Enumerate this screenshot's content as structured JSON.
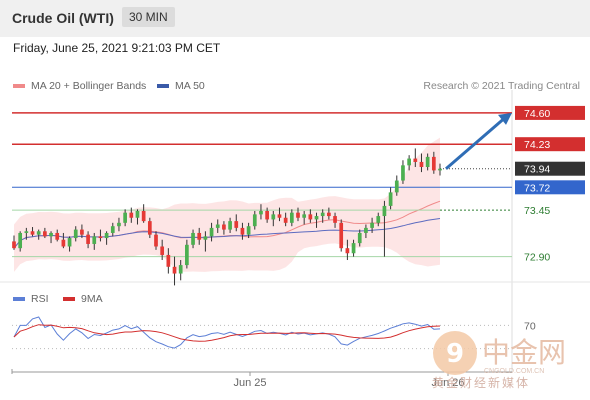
{
  "header": {
    "title": "Crude Oil (WTI)",
    "timeframe": "30 MIN"
  },
  "datetime": "Friday, June 25, 2021 9:21:03 PM CET",
  "legend": {
    "ma20_label": "MA 20 + Bollinger Bands",
    "ma50_label": "MA 50",
    "rsi_label": "RSI",
    "ma9_label": "9MA",
    "copyright": "Research © 2021 Trading Central"
  },
  "colors": {
    "resistance": "#d32f2f",
    "support": "#a5d6a7",
    "pivot": "#3366cc",
    "current": "#333333",
    "arrow": "#2f6db5",
    "bb_fill": "#fde0e0",
    "ma20": "#f08a8a",
    "ma50": "#5c6bc0",
    "rsi": "#5c7fd6",
    "ma9": "#d32f2f"
  },
  "watermark": {
    "name": "中金网",
    "domain": "CNGOLD.COM.CN",
    "tagline": "黄金财经新媒体"
  },
  "chart_data": [
    {
      "type": "candlestick",
      "x_axis": {
        "labels": [
          "Jun 25",
          "Jun 26"
        ]
      },
      "y_range": [
        72.6,
        74.8
      ],
      "levels": [
        {
          "label": "74.60",
          "value": 74.6,
          "kind": "target"
        },
        {
          "label": "74.23",
          "value": 74.23,
          "kind": "resistance"
        },
        {
          "label": "73.94",
          "value": 73.94,
          "kind": "current"
        },
        {
          "label": "73.72",
          "value": 73.72,
          "kind": "pivot"
        },
        {
          "label": "73.45",
          "value": 73.45,
          "kind": "support"
        },
        {
          "label": "72.90",
          "value": 72.9,
          "kind": "support"
        }
      ],
      "candles": [
        [
          73.08,
          73.15,
          72.98,
          73.0
        ],
        [
          73.0,
          73.2,
          72.96,
          73.18
        ],
        [
          73.18,
          73.24,
          73.1,
          73.2
        ],
        [
          73.2,
          73.25,
          73.14,
          73.16
        ],
        [
          73.16,
          73.22,
          73.1,
          73.2
        ],
        [
          73.2,
          73.24,
          73.12,
          73.14
        ],
        [
          73.14,
          73.2,
          73.06,
          73.18
        ],
        [
          73.18,
          73.22,
          73.08,
          73.1
        ],
        [
          73.1,
          73.18,
          73.0,
          73.02
        ],
        [
          73.02,
          73.14,
          72.96,
          73.12
        ],
        [
          73.12,
          73.26,
          73.08,
          73.22
        ],
        [
          73.22,
          73.28,
          73.12,
          73.16
        ],
        [
          73.16,
          73.2,
          73.0,
          73.05
        ],
        [
          73.05,
          73.18,
          72.98,
          73.14
        ],
        [
          73.14,
          73.22,
          73.08,
          73.12
        ],
        [
          73.12,
          73.2,
          73.04,
          73.18
        ],
        [
          73.18,
          73.3,
          73.14,
          73.26
        ],
        [
          73.26,
          73.36,
          73.2,
          73.3
        ],
        [
          73.3,
          73.46,
          73.26,
          73.42
        ],
        [
          73.42,
          73.48,
          73.3,
          73.36
        ],
        [
          73.36,
          73.46,
          73.28,
          73.44
        ],
        [
          73.44,
          73.52,
          73.3,
          73.32
        ],
        [
          73.32,
          73.36,
          73.12,
          73.16
        ],
        [
          73.16,
          73.2,
          72.98,
          73.02
        ],
        [
          73.02,
          73.1,
          72.86,
          72.92
        ],
        [
          72.92,
          73.0,
          72.7,
          72.78
        ],
        [
          72.78,
          72.9,
          72.56,
          72.7
        ],
        [
          72.7,
          72.86,
          72.62,
          72.8
        ],
        [
          72.8,
          73.1,
          72.76,
          73.04
        ],
        [
          73.04,
          73.22,
          73.0,
          73.18
        ],
        [
          73.18,
          73.24,
          73.04,
          73.1
        ],
        [
          73.1,
          73.2,
          72.96,
          73.14
        ],
        [
          73.14,
          73.3,
          73.08,
          73.24
        ],
        [
          73.24,
          73.34,
          73.18,
          73.28
        ],
        [
          73.28,
          73.32,
          73.16,
          73.22
        ],
        [
          73.22,
          73.36,
          73.18,
          73.32
        ],
        [
          73.32,
          73.4,
          73.2,
          73.24
        ],
        [
          73.24,
          73.3,
          73.1,
          73.16
        ],
        [
          73.16,
          73.3,
          73.12,
          73.26
        ],
        [
          73.26,
          73.44,
          73.22,
          73.4
        ],
        [
          73.4,
          73.52,
          73.34,
          73.44
        ],
        [
          73.44,
          73.48,
          73.3,
          73.34
        ],
        [
          73.34,
          73.44,
          73.26,
          73.4
        ],
        [
          73.4,
          73.48,
          73.32,
          73.36
        ],
        [
          73.36,
          73.42,
          73.26,
          73.3
        ],
        [
          73.3,
          73.46,
          73.26,
          73.42
        ],
        [
          73.42,
          73.48,
          73.32,
          73.36
        ],
        [
          73.36,
          73.44,
          73.28,
          73.4
        ],
        [
          73.4,
          73.46,
          73.3,
          73.34
        ],
        [
          73.34,
          73.42,
          73.24,
          73.38
        ],
        [
          73.38,
          73.46,
          73.3,
          73.42
        ],
        [
          73.42,
          73.48,
          73.34,
          73.38
        ],
        [
          73.38,
          73.42,
          73.24,
          73.3
        ],
        [
          73.3,
          73.34,
          72.96,
          73.0
        ],
        [
          73.0,
          73.1,
          72.86,
          72.94
        ],
        [
          72.94,
          73.1,
          72.9,
          73.06
        ],
        [
          73.06,
          73.22,
          73.02,
          73.18
        ],
        [
          73.18,
          73.28,
          73.12,
          73.24
        ],
        [
          73.24,
          73.36,
          73.18,
          73.3
        ],
        [
          73.3,
          73.42,
          73.26,
          73.38
        ],
        [
          73.38,
          73.56,
          72.9,
          73.5
        ],
        [
          73.5,
          73.72,
          73.46,
          73.66
        ],
        [
          73.66,
          73.86,
          73.62,
          73.8
        ],
        [
          73.8,
          74.04,
          73.76,
          73.98
        ],
        [
          73.98,
          74.1,
          73.92,
          74.06
        ],
        [
          74.06,
          74.18,
          73.96,
          74.02
        ],
        [
          74.02,
          74.12,
          73.9,
          73.96
        ],
        [
          73.96,
          74.12,
          73.92,
          74.08
        ],
        [
          74.08,
          74.14,
          73.88,
          73.92
        ],
        [
          73.92,
          74.0,
          73.86,
          73.94
        ]
      ]
    },
    {
      "type": "line",
      "title": "RSI",
      "y_levels": [
        {
          "label": "70",
          "value": 70
        }
      ],
      "y_range": [
        0,
        100
      ]
    }
  ]
}
